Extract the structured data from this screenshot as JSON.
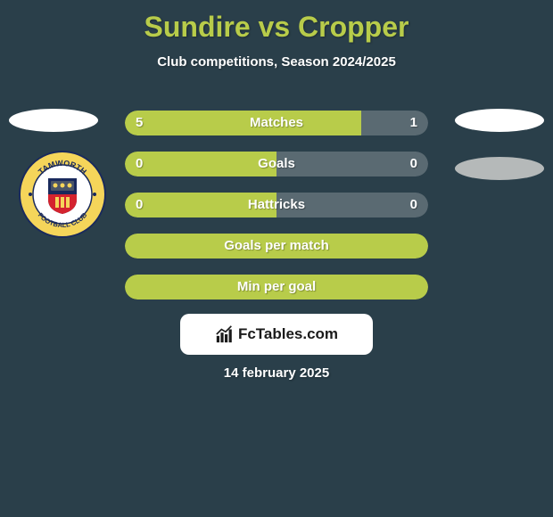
{
  "title": "Sundire vs Cropper",
  "subtitle": "Club competitions, Season 2024/2025",
  "date": "14 february 2025",
  "brand": "FcTables.com",
  "colors": {
    "background": "#2a3f4a",
    "accent": "#b8cc4a",
    "bar_right": "#5a6a72",
    "text": "#ffffff"
  },
  "bars": [
    {
      "label": "Matches",
      "left_val": "5",
      "right_val": "1",
      "left_pct": 78,
      "right_pct": 22,
      "show_vals": true
    },
    {
      "label": "Goals",
      "left_val": "0",
      "right_val": "0",
      "left_pct": 50,
      "right_pct": 50,
      "show_vals": true
    },
    {
      "label": "Hattricks",
      "left_val": "0",
      "right_val": "0",
      "left_pct": 50,
      "right_pct": 50,
      "show_vals": true
    },
    {
      "label": "Goals per match",
      "left_val": "",
      "right_val": "",
      "left_pct": 100,
      "right_pct": 0,
      "show_vals": false,
      "full_green": true
    },
    {
      "label": "Min per goal",
      "left_val": "",
      "right_val": "",
      "left_pct": 100,
      "right_pct": 0,
      "show_vals": false,
      "full_green": true
    }
  ],
  "badge": {
    "top_text": "TAMWORTH",
    "bottom_text": "FOOTBALL CLUB",
    "ring_color": "#f5d55a",
    "center_bg": "#ffffff",
    "shield_top": "#1a2a5c",
    "shield_bottom": "#d4232e"
  }
}
